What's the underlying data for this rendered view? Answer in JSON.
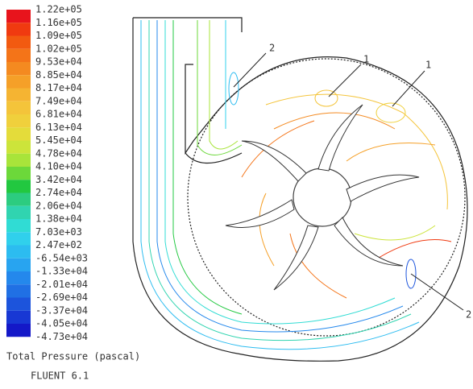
{
  "colorbar": {
    "labels": [
      "1.22e+05",
      "1.16e+05",
      "1.09e+05",
      "1.02e+05",
      "9.53e+04",
      "8.85e+04",
      "8.17e+04",
      "7.49e+04",
      "6.81e+04",
      "6.13e+04",
      "5.45e+04",
      "4.78e+04",
      "4.10e+04",
      "3.42e+04",
      "2.74e+04",
      "2.06e+04",
      "1.38e+04",
      "7.03e+03",
      "2.47e+02",
      "-6.54e+03",
      "-1.33e+04",
      "-2.01e+04",
      "-2.69e+04",
      "-3.37e+04",
      "-4.05e+04",
      "-4.73e+04"
    ],
    "colors": [
      "#e8141c",
      "#f03a10",
      "#f25a10",
      "#f47418",
      "#f48a20",
      "#f5a028",
      "#f5b432",
      "#f4c43a",
      "#f0d03c",
      "#e4dc3a",
      "#cce43a",
      "#a8e43a",
      "#6cd83a",
      "#22c840",
      "#2ccc80",
      "#30d4b0",
      "#30dcd4",
      "#30d0ec",
      "#2cbcf0",
      "#28a4f0",
      "#2488ec",
      "#2070e4",
      "#1c54dc",
      "#1838d4",
      "#1418c8"
    ],
    "title": "Total Pressure (pascal)",
    "footer": "FLUENT 6.1"
  },
  "annotations": [
    "2",
    "1",
    "1",
    "2"
  ]
}
